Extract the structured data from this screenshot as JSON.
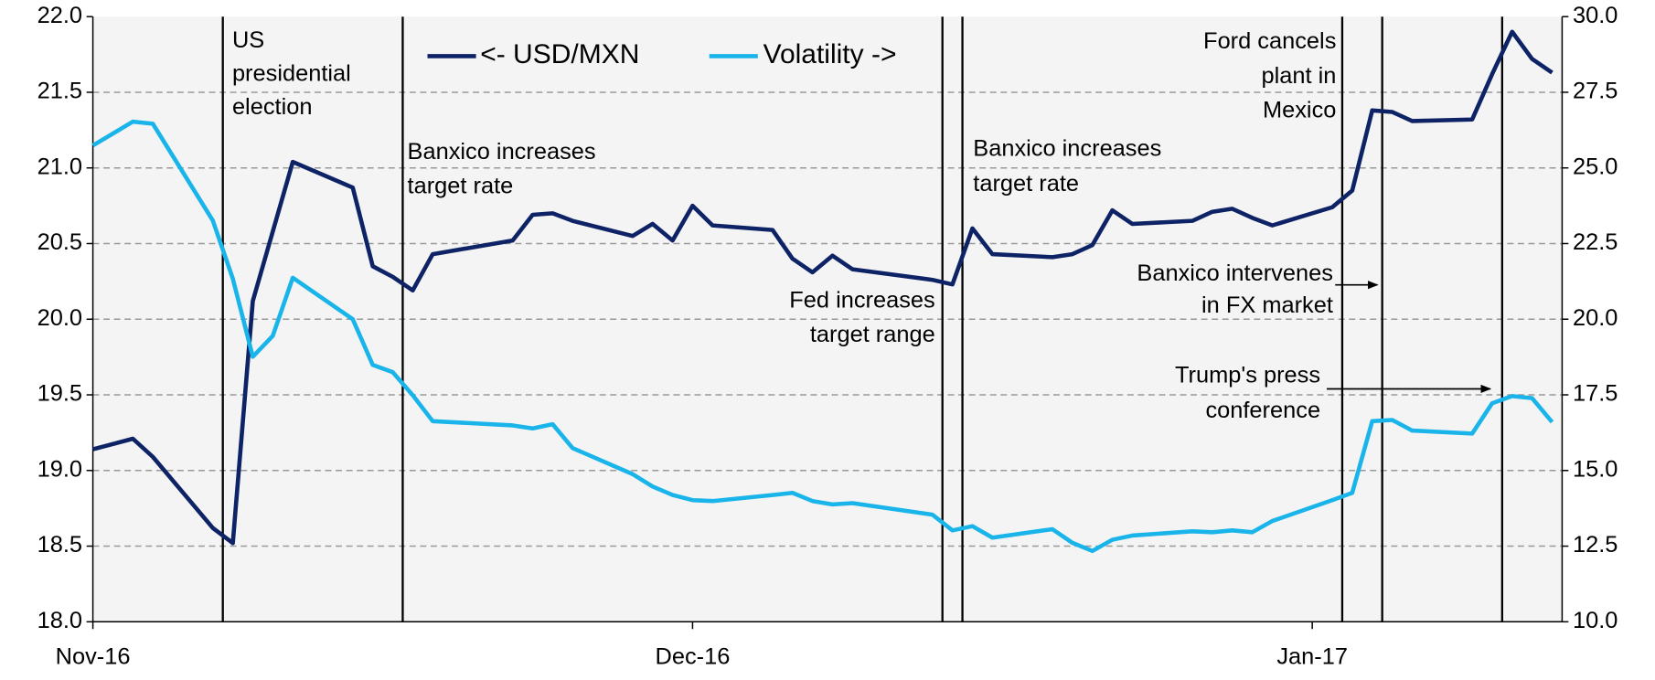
{
  "chart_data": {
    "type": "line",
    "x": [
      0,
      2,
      3,
      6,
      7,
      8,
      9,
      10,
      13,
      14,
      15,
      16,
      17,
      21,
      22,
      23,
      24,
      27,
      28,
      29,
      30,
      31,
      34,
      35,
      36,
      37,
      38,
      42,
      43,
      44,
      45,
      48,
      49,
      50,
      51,
      52,
      55,
      56,
      57,
      58,
      59,
      62,
      63,
      64,
      65,
      66,
      69,
      70,
      71,
      72,
      73
    ],
    "xlim": [
      0,
      73.5
    ],
    "xticks": [
      {
        "value": 0,
        "label": "Nov-16"
      },
      {
        "value": 30,
        "label": "Dec-16"
      },
      {
        "value": 61,
        "label": "Jan-17"
      }
    ],
    "ylim": [
      18,
      22
    ],
    "yticks": [
      {
        "value": 18,
        "label": "18.0"
      },
      {
        "value": 18.5,
        "label": "18.5"
      },
      {
        "value": 19,
        "label": "19.0"
      },
      {
        "value": 19.5,
        "label": "19.5"
      },
      {
        "value": 20,
        "label": "20.0"
      },
      {
        "value": 20.5,
        "label": "20.5"
      },
      {
        "value": 21,
        "label": "21.0"
      },
      {
        "value": 21.5,
        "label": "21.5"
      },
      {
        "value": 22,
        "label": "22.0"
      }
    ],
    "y2lim": [
      10,
      30
    ],
    "y2ticks": [
      {
        "value": 10,
        "label": "10.0"
      },
      {
        "value": 12.5,
        "label": "12.5"
      },
      {
        "value": 15,
        "label": "15.0"
      },
      {
        "value": 17.5,
        "label": "17.5"
      },
      {
        "value": 20,
        "label": "20.0"
      },
      {
        "value": 22.5,
        "label": "22.5"
      },
      {
        "value": 25,
        "label": "25.0"
      },
      {
        "value": 27.5,
        "label": "27.5"
      },
      {
        "value": 30,
        "label": "30.0"
      }
    ],
    "grid": true,
    "series": [
      {
        "name": "<- USD/MXN",
        "color": "#0d2366",
        "axis": "y",
        "values": [
          19.14,
          19.21,
          19.09,
          18.62,
          18.52,
          20.12,
          20.58,
          21.04,
          20.87,
          20.35,
          20.28,
          20.19,
          20.43,
          20.52,
          20.69,
          20.7,
          20.65,
          20.55,
          20.63,
          20.52,
          20.75,
          20.62,
          20.59,
          20.4,
          20.31,
          20.42,
          20.33,
          20.26,
          20.23,
          20.6,
          20.43,
          20.41,
          20.43,
          20.49,
          20.72,
          20.63,
          20.65,
          20.71,
          20.73,
          20.67,
          20.62,
          20.74,
          20.85,
          21.38,
          21.37,
          21.31,
          21.32,
          21.62,
          21.9,
          21.72,
          21.63
        ]
      },
      {
        "name": "Volatility ->",
        "color": "#19b4ea",
        "axis": "y2",
        "values": [
          25.74,
          26.53,
          26.46,
          23.26,
          21.34,
          18.76,
          19.45,
          21.37,
          20.0,
          18.49,
          18.25,
          17.49,
          16.63,
          16.49,
          16.39,
          16.53,
          15.74,
          14.88,
          14.47,
          14.19,
          14.02,
          13.99,
          14.19,
          14.26,
          13.99,
          13.88,
          13.92,
          13.54,
          13.02,
          13.16,
          12.78,
          13.06,
          12.61,
          12.34,
          12.71,
          12.85,
          12.99,
          12.96,
          13.02,
          12.96,
          13.33,
          14.02,
          14.26,
          16.63,
          16.67,
          16.32,
          16.22,
          17.22,
          17.46,
          17.39,
          16.6
        ]
      }
    ],
    "events": [
      6.5,
      15.5,
      42.5,
      43.5,
      62.5,
      64.5,
      70.5
    ],
    "annotations": [
      {
        "lines": [
          "US",
          "presidential",
          "election"
        ]
      },
      {
        "lines": [
          "Banxico increases",
          "target rate"
        ]
      },
      {
        "lines": [
          "Fed increases",
          "target range"
        ]
      },
      {
        "lines": [
          "Banxico increases",
          "target rate"
        ]
      },
      {
        "lines": [
          "Ford cancels",
          "plant in",
          "Mexico"
        ]
      },
      {
        "lines": [
          "Banxico intervenes",
          "in FX market"
        ]
      },
      {
        "lines": [
          "Trump's press",
          "conference"
        ]
      }
    ]
  }
}
